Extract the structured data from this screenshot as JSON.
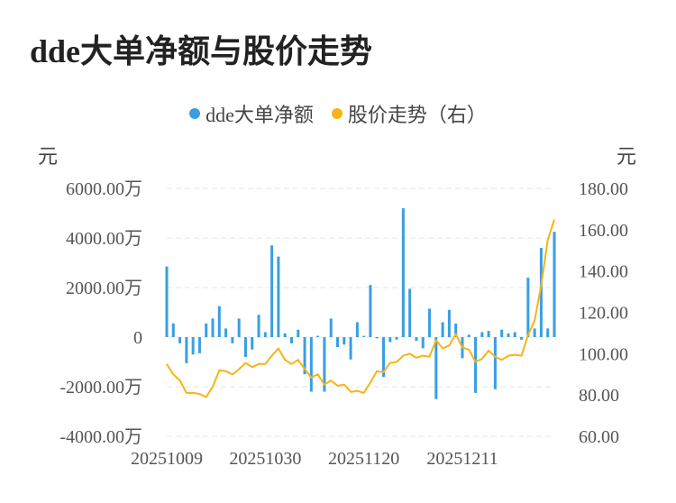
{
  "title": "dde大单净额与股价走势",
  "legend": [
    {
      "label": "dde大单净额",
      "color": "#3a9ee4"
    },
    {
      "label": "股价走势（右）",
      "color": "#f5b417"
    }
  ],
  "left_unit": "元",
  "right_unit": "元",
  "chart_data": {
    "type": "bar+line",
    "title": "dde大单净额与股价走势",
    "x_tick_labels": [
      "20251009",
      "20251030",
      "20251120",
      "20251211"
    ],
    "left_axis": {
      "label": "元",
      "ticks": [
        "6000.00万",
        "4000.00万",
        "2000.00万",
        "0",
        "-2000.00万",
        "-4000.00万"
      ],
      "ylim": [
        -4000,
        6000
      ],
      "unit": "万元"
    },
    "right_axis": {
      "label": "元",
      "ticks": [
        "180.00",
        "160.00",
        "140.00",
        "120.00",
        "100.00",
        "80.00",
        "60.00"
      ],
      "ylim": [
        60,
        180
      ]
    },
    "grid": true,
    "legend_position": "top-center",
    "series": [
      {
        "name": "dde大单净额",
        "type": "bar",
        "axis": "left",
        "color": "#3a9ee4",
        "values": [
          2850,
          550,
          -250,
          -1050,
          -700,
          -650,
          550,
          750,
          1250,
          350,
          -250,
          750,
          -800,
          -500,
          900,
          200,
          3700,
          3250,
          150,
          -250,
          300,
          -1500,
          -2200,
          50,
          -2200,
          750,
          -400,
          -300,
          -900,
          600,
          50,
          2100,
          -50,
          -1600,
          -200,
          -100,
          5200,
          1950,
          -150,
          -450,
          1150,
          -2500,
          600,
          1100,
          550,
          -850,
          100,
          -2250,
          200,
          250,
          -2100,
          300,
          150,
          200,
          -100,
          2400,
          350,
          3600,
          350,
          4250
        ]
      },
      {
        "name": "股价走势（右）",
        "type": "line",
        "axis": "right",
        "color": "#f5b417",
        "values": [
          95,
          90,
          87,
          81,
          81,
          80.5,
          79,
          84,
          92,
          91.5,
          90,
          92.5,
          95.5,
          93.5,
          95,
          95,
          99,
          102.5,
          97,
          95,
          97,
          92.5,
          88.5,
          90,
          85,
          87,
          84.5,
          85,
          81.5,
          82,
          81,
          86,
          91.5,
          91,
          95.5,
          96,
          99,
          100,
          98,
          99,
          98.5,
          106.5,
          102.5,
          104,
          109.5,
          103,
          102,
          96,
          97.5,
          101.5,
          98.5,
          97,
          99,
          99.5,
          99,
          109,
          116,
          133,
          155,
          165
        ]
      }
    ]
  }
}
